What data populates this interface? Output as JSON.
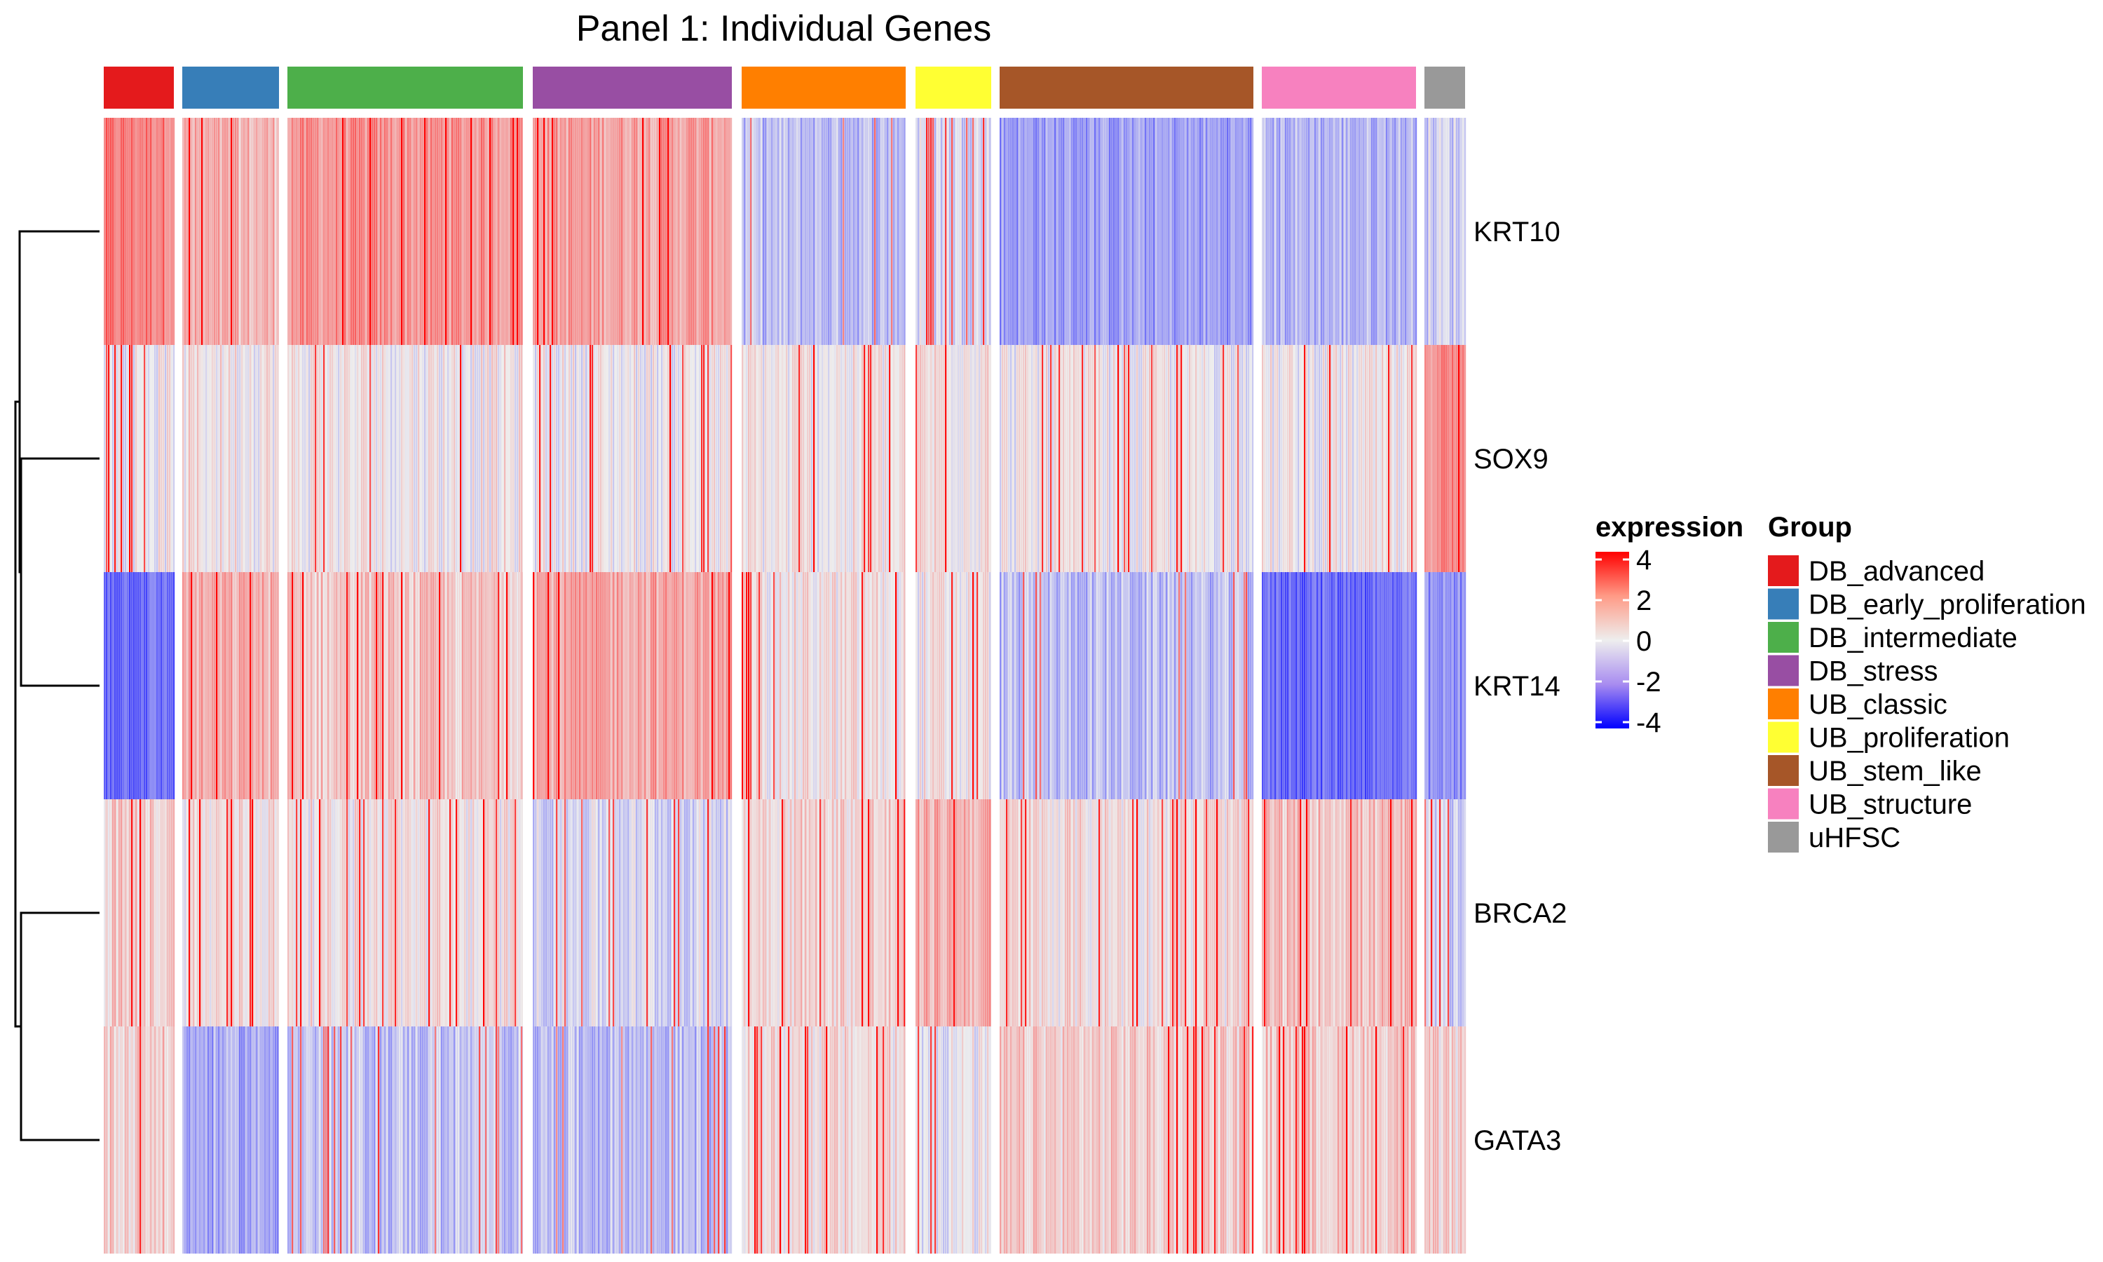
{
  "chart_data": {
    "type": "heatmap",
    "title": "Panel 1: Individual Genes",
    "genes": [
      "KRT10",
      "SOX9",
      "KRT14",
      "BRCA2",
      "GATA3"
    ],
    "groups": [
      {
        "name": "DB_advanced",
        "color": "#E41A1C"
      },
      {
        "name": "DB_early_proliferation",
        "color": "#377EB8"
      },
      {
        "name": "DB_intermediate",
        "color": "#4DAF4A"
      },
      {
        "name": "DB_stress",
        "color": "#984EA3"
      },
      {
        "name": "UB_classic",
        "color": "#FF7F00"
      },
      {
        "name": "UB_proliferation",
        "color": "#FFFF33"
      },
      {
        "name": "UB_stem_like",
        "color": "#A65628"
      },
      {
        "name": "UB_structure",
        "color": "#F781BF"
      },
      {
        "name": "uHFSC",
        "color": "#999999"
      }
    ],
    "mean_expression": [
      [
        2.0,
        1.0,
        1.6,
        1.4,
        -0.9,
        -0.4,
        -1.4,
        -1.0,
        -0.5
      ],
      [
        0.0,
        0.2,
        0.1,
        0.0,
        0.1,
        0.3,
        0.0,
        0.0,
        1.8
      ],
      [
        -2.2,
        1.1,
        0.7,
        1.3,
        0.2,
        0.1,
        -0.9,
        -2.3,
        -1.7
      ],
      [
        0.6,
        0.3,
        0.2,
        -0.4,
        0.5,
        1.1,
        0.3,
        0.8,
        -0.5
      ],
      [
        0.6,
        -1.2,
        -0.8,
        -0.9,
        0.3,
        -0.1,
        0.6,
        0.7,
        0.4
      ]
    ],
    "dendrogram": "((KRT10,(SOX9,KRT14)),(BRCA2,GATA3))",
    "legend": {
      "expression_title": "expression",
      "expression_ticks": [
        "4",
        "2",
        "0",
        "-2",
        "-4"
      ],
      "expression_range": [
        -4,
        4
      ],
      "expression_colors": {
        "low": "#0000FF",
        "mid": "#EEEEEE",
        "high": "#FF0000"
      },
      "group_title": "Group"
    }
  }
}
